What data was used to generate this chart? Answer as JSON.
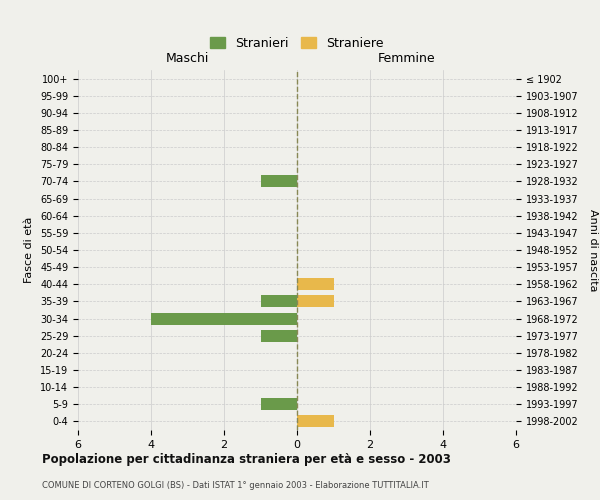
{
  "age_groups": [
    "100+",
    "95-99",
    "90-94",
    "85-89",
    "80-84",
    "75-79",
    "70-74",
    "65-69",
    "60-64",
    "55-59",
    "50-54",
    "45-49",
    "40-44",
    "35-39",
    "30-34",
    "25-29",
    "20-24",
    "15-19",
    "10-14",
    "5-9",
    "0-4"
  ],
  "birth_years": [
    "≤ 1902",
    "1903-1907",
    "1908-1912",
    "1913-1917",
    "1918-1922",
    "1923-1927",
    "1928-1932",
    "1933-1937",
    "1938-1942",
    "1943-1947",
    "1948-1952",
    "1953-1957",
    "1958-1962",
    "1963-1967",
    "1968-1972",
    "1973-1977",
    "1978-1982",
    "1983-1987",
    "1988-1992",
    "1993-1997",
    "1998-2002"
  ],
  "maschi_stranieri": [
    0,
    0,
    0,
    0,
    0,
    0,
    1,
    0,
    0,
    0,
    0,
    0,
    0,
    1,
    4,
    1,
    0,
    0,
    0,
    1,
    0
  ],
  "femmine_straniere": [
    0,
    0,
    0,
    0,
    0,
    0,
    0,
    0,
    0,
    0,
    0,
    0,
    1,
    1,
    0,
    0,
    0,
    0,
    0,
    0,
    1
  ],
  "xlim": 6,
  "color_maschi": "#6a9a4a",
  "color_femmine": "#e8b84b",
  "title": "Popolazione per cittadinanza straniera per età e sesso - 2003",
  "subtitle": "COMUNE DI CORTENO GOLGI (BS) - Dati ISTAT 1° gennaio 2003 - Elaborazione TUTTITALIA.IT",
  "ylabel_left": "Fasce di età",
  "ylabel_right": "Anni di nascita",
  "legend_maschi": "Stranieri",
  "legend_femmine": "Straniere",
  "header_maschi": "Maschi",
  "header_femmine": "Femmine",
  "background_color": "#f0f0eb",
  "bar_height": 0.7,
  "grid_color": "#cccccc",
  "center_line_color": "#888855"
}
